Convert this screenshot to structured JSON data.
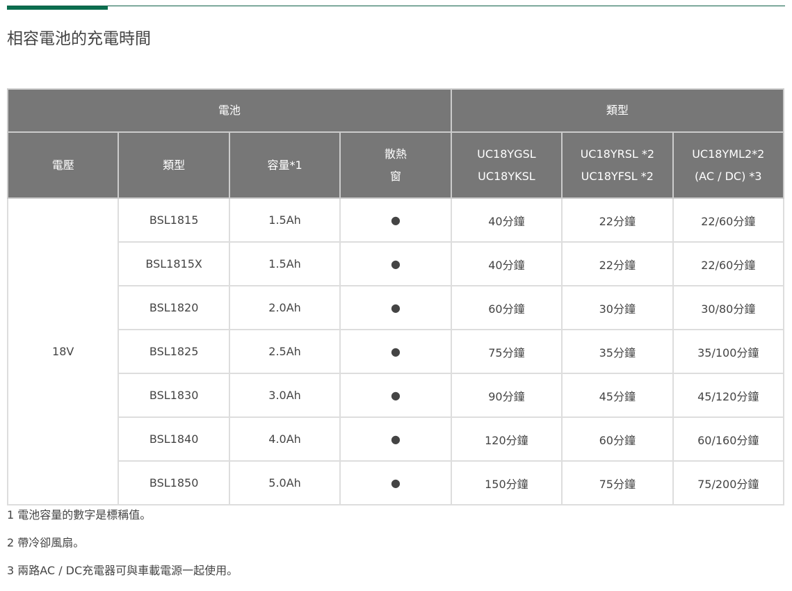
{
  "title": "相容電池的充電時間",
  "header": {
    "group1": "電池",
    "group2": "類型",
    "cols": [
      "電壓",
      "類型",
      "容量*1",
      "散熱",
      "窗"
    ],
    "chargers": [
      [
        "UC18YGSL",
        "UC18YKSL"
      ],
      [
        "UC18YRSL *2",
        "UC18YFSL *2"
      ],
      [
        "UC18YML2*2",
        "(AC / DC)  *3"
      ]
    ]
  },
  "voltage": "18V",
  "rows": [
    [
      "BSL1815",
      "1.5Ah",
      "●",
      "40分鐘",
      "22分鐘",
      "22/60分鐘"
    ],
    [
      "BSL1815X",
      "1.5Ah",
      "●",
      "40分鐘",
      "22分鐘",
      "22/60分鐘"
    ],
    [
      "BSL1820",
      "2.0Ah",
      "●",
      "60分鐘",
      "30分鐘",
      "30/80分鐘"
    ],
    [
      "BSL1825",
      "2.5Ah",
      "●",
      "75分鐘",
      "35分鐘",
      "35/100分鐘"
    ],
    [
      "BSL1830",
      "3.0Ah",
      "●",
      "90分鐘",
      "45分鐘",
      "45/120分鐘"
    ],
    [
      "BSL1840",
      "4.0Ah",
      "●",
      "120分鐘",
      "60分鐘",
      "60/160分鐘"
    ],
    [
      "BSL1850",
      "5.0Ah",
      "●",
      "150分鐘",
      "75分鐘",
      "75/200分鐘"
    ]
  ],
  "notes": [
    "1 電池容量的數字是標稱值。",
    "2 帶冷卻風扇。",
    "3 兩路AC / DC充電器可與車載電源一起使用。"
  ]
}
